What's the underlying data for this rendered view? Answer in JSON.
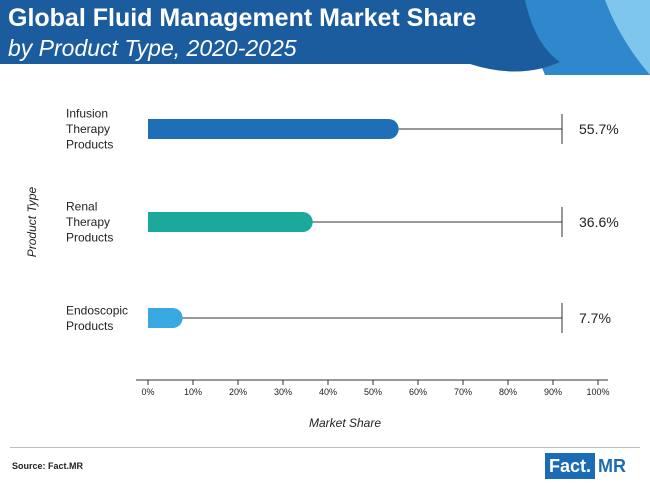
{
  "header": {
    "title_line1": "Global Fluid Management Market Share",
    "title_line2": "by Product Type, 2020-2025"
  },
  "footer": {
    "source": "Source: Fact.MR",
    "logo_part1": "Fact.",
    "logo_part2": "MR"
  },
  "colors": {
    "header_dark": "#1b5c9e",
    "header_mid": "#2f87cc",
    "header_light": "#7fc6ec",
    "axis": "#333333"
  },
  "chart_data": {
    "type": "bar",
    "orientation": "horizontal",
    "title": "Global Fluid Management Market Share by Product Type, 2020-2025",
    "xlabel": "Market Share",
    "ylabel": "Product Type",
    "xlim": [
      0,
      100
    ],
    "ticks": [
      0,
      10,
      20,
      30,
      40,
      50,
      60,
      70,
      80,
      90,
      100
    ],
    "tick_labels": [
      "0%",
      "10%",
      "20%",
      "30%",
      "40%",
      "50%",
      "60%",
      "70%",
      "80%",
      "90%",
      "100%"
    ],
    "reference_line_end": 92,
    "categories": [
      {
        "lines": [
          "Infusion",
          "Therapy",
          "Products"
        ],
        "value": 55.7,
        "label": "55.7%",
        "color": "#1f6fb8"
      },
      {
        "lines": [
          "Renal",
          "Therapy",
          "Products"
        ],
        "value": 36.6,
        "label": "36.6%",
        "color": "#1aa99a"
      },
      {
        "lines": [
          "Endoscopic",
          "Products"
        ],
        "value": 7.7,
        "label": "7.7%",
        "color": "#3aa8e0"
      }
    ]
  }
}
